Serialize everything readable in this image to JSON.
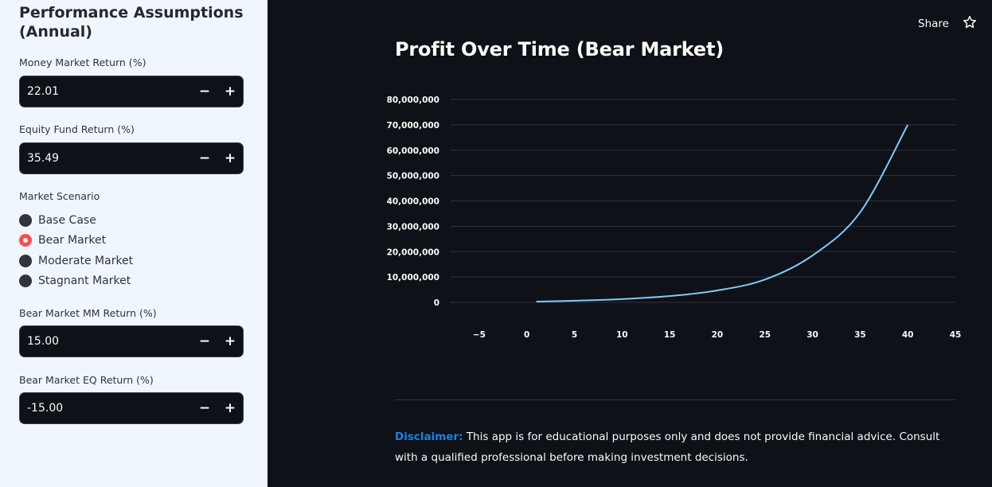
{
  "sidebar": {
    "section_title": "Performance Assumptions (Annual)",
    "money_market": {
      "label": "Money Market Return (%)",
      "value": "22.01"
    },
    "equity_fund": {
      "label": "Equity Fund Return (%)",
      "value": "35.49"
    },
    "scenario": {
      "label": "Market Scenario",
      "options": [
        "Base Case",
        "Bear Market",
        "Moderate Market",
        "Stagnant Market"
      ],
      "selected": "Bear Market"
    },
    "bear_mm": {
      "label": "Bear Market MM Return (%)",
      "value": "15.00"
    },
    "bear_eq": {
      "label": "Bear Market EQ Return (%)",
      "value": "-15.00"
    },
    "minus_symbol": "−",
    "plus_symbol": "+"
  },
  "header": {
    "share_label": "Share",
    "star_icon": "star-outline-icon"
  },
  "main": {
    "chart_title": "Profit Over Time (Bear Market)",
    "disclaimer_label": "Disclaimer:",
    "disclaimer_text": "This app is for educational purposes only and does not provide financial advice. Consult with a qualified professional before making investment decisions."
  },
  "colors": {
    "sidebar_bg": "#f0f6fd",
    "main_bg": "#0e1117",
    "accent_red": "#ff4b4b",
    "line_color": "#83c9ff",
    "link_blue": "#1c83e1"
  },
  "chart_data": {
    "type": "line",
    "title": "Profit Over Time (Bear Market)",
    "xlabel": "",
    "ylabel": "",
    "xlim": [
      -8,
      45
    ],
    "ylim": [
      0,
      80000000
    ],
    "x_ticks": [
      -5,
      0,
      5,
      10,
      15,
      20,
      25,
      30,
      35,
      40,
      45
    ],
    "y_ticks": [
      0,
      10000000,
      20000000,
      30000000,
      40000000,
      50000000,
      60000000,
      70000000,
      80000000
    ],
    "grid": "horizontal",
    "series": [
      {
        "x": [
          1,
          5,
          10,
          15,
          20,
          25,
          30,
          35,
          40
        ],
        "y": [
          300000,
          650000,
          1300000,
          2500000,
          4700000,
          9000000,
          18500000,
          35500000,
          70000000
        ]
      }
    ]
  }
}
